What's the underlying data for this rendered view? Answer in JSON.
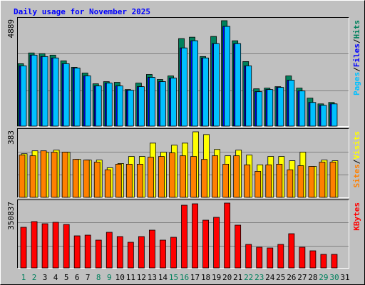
{
  "chart_data": [
    {
      "type": "bar",
      "title": "Daily usage for November 2025",
      "legend_separator": "/",
      "ylim": [
        0,
        4889
      ],
      "yticks": [
        4889
      ],
      "series": [
        {
          "name": "Hits",
          "color": "#00805C",
          "values": [
            2894,
            3393,
            3359,
            3293,
            3027,
            2727,
            2461,
            1962,
            2062,
            2029,
            1696,
            1996,
            2395,
            2162,
            2328,
            4058,
            4124,
            3226,
            4158,
            4889,
            3958,
            2993,
            1730,
            1763,
            1829,
            2328,
            1763,
            1297,
            1031,
            1098,
            null
          ]
        },
        {
          "name": "Files",
          "color": "#0000FF",
          "values": [
            2794,
            3293,
            3226,
            3160,
            2894,
            2694,
            2328,
            1862,
            1996,
            1862,
            1663,
            1829,
            2262,
            2062,
            2228,
            3625,
            3958,
            3160,
            3825,
            4623,
            3825,
            2794,
            1596,
            1696,
            1796,
            2128,
            1630,
            1098,
            964,
            1031,
            null
          ]
        },
        {
          "name": "Pages",
          "color": "#00C0FF",
          "values": [
            2794,
            3293,
            3226,
            3160,
            2894,
            2694,
            2328,
            1862,
            1996,
            1862,
            1663,
            1829,
            2262,
            2062,
            2228,
            3625,
            3958,
            3160,
            3825,
            4623,
            3825,
            2794,
            1596,
            1696,
            1796,
            2128,
            1630,
            1098,
            964,
            1031,
            null
          ]
        }
      ]
    },
    {
      "type": "bar",
      "legend_separator": "/",
      "ylim": [
        0,
        383
      ],
      "yticks": [
        383
      ],
      "series": [
        {
          "name": "Visits",
          "color": "#FFFF00",
          "values": [
            255,
            272,
            264,
            276,
            264,
            222,
            218,
            218,
            173,
            198,
            239,
            239,
            317,
            264,
            305,
            317,
            383,
            367,
            280,
            243,
            276,
            247,
            190,
            239,
            239,
            214,
            264,
            181,
            218,
            214,
            null
          ]
        },
        {
          "name": "Sites",
          "color": "#FF8000",
          "values": [
            247,
            243,
            272,
            264,
            264,
            222,
            218,
            206,
            161,
            194,
            194,
            194,
            235,
            239,
            260,
            243,
            239,
            222,
            243,
            194,
            243,
            190,
            152,
            190,
            194,
            161,
            185,
            181,
            206,
            206,
            null
          ]
        }
      ]
    },
    {
      "type": "bar",
      "categories": [
        "1",
        "2",
        "3",
        "4",
        "5",
        "6",
        "7",
        "8",
        "9",
        "10",
        "11",
        "12",
        "13",
        "14",
        "15",
        "16",
        "17",
        "18",
        "19",
        "20",
        "21",
        "22",
        "23",
        "24",
        "25",
        "26",
        "27",
        "28",
        "29",
        "30",
        "31"
      ],
      "label_colors": [
        "#00805C",
        "#00805C",
        "#000000",
        "#000000",
        "#000000",
        "#000000",
        "#000000",
        "#00805C",
        "#00805C",
        "#000000",
        "#000000",
        "#000000",
        "#000000",
        "#000000",
        "#00805C",
        "#00805C",
        "#000000",
        "#000000",
        "#000000",
        "#000000",
        "#000000",
        "#00805C",
        "#00805C",
        "#000000",
        "#000000",
        "#000000",
        "#000000",
        "#000000",
        "#00805C",
        "#00805C",
        "#000000"
      ],
      "ylim": [
        0,
        350837
      ],
      "yticks": [
        350837
      ],
      "series": [
        {
          "name": "KBytes",
          "color": "#FF0000",
          "values": [
            219735,
            250575,
            239010,
            246720,
            235155,
            173475,
            177330,
            150345,
            192750,
            169620,
            138780,
            169620,
            204315,
            150345,
            165765,
            339240,
            346950,
            258285,
            273705,
            350837,
            231300,
            127215,
            111795,
            107940,
            127215,
            185040,
            111795,
            92520,
            73245,
            73245,
            null
          ]
        }
      ]
    }
  ]
}
